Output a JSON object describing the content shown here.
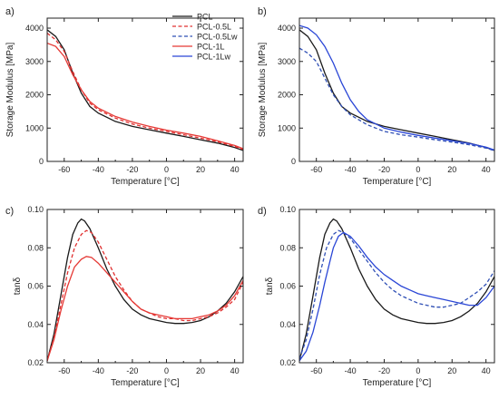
{
  "colors": {
    "PCL": "#1a1a1a",
    "PCL-0.5L": "#e03030",
    "PCL-0.5Lw": "#2f4fb5",
    "PCL-1L": "#e53935",
    "PCL-1Lw": "#2a46d6"
  },
  "chart_data": [
    {
      "panel": "a)",
      "type": "line",
      "xlabel": "Temperature [°C]",
      "ylabel": "Storage Modulus [MPa]",
      "xlim": [
        -70,
        45
      ],
      "ylim": [
        0,
        4300
      ],
      "xticks": [
        -60,
        -40,
        -20,
        0,
        20,
        40
      ],
      "yticks": [
        0,
        1000,
        2000,
        3000,
        4000
      ],
      "legend": {
        "placement": "top-right",
        "entries": [
          "PCL",
          "PCL-0.5L",
          "PCL-0.5Lw",
          "PCL-1L",
          "PCL-1Lw"
        ]
      },
      "series": [
        {
          "name": "PCL",
          "style": "solid",
          "color_key": "PCL",
          "x": [
            -70,
            -65,
            -60,
            -55,
            -50,
            -45,
            -40,
            -30,
            -20,
            -10,
            0,
            10,
            20,
            30,
            40,
            45
          ],
          "y": [
            3950,
            3750,
            3350,
            2650,
            2050,
            1650,
            1450,
            1200,
            1050,
            950,
            850,
            750,
            650,
            550,
            420,
            330
          ]
        },
        {
          "name": "PCL-0.5L",
          "style": "dashed",
          "color_key": "PCL-0.5L",
          "x": [
            -70,
            -65,
            -60,
            -55,
            -50,
            -45,
            -40,
            -30,
            -20,
            -10,
            0,
            10,
            20,
            30,
            40,
            45
          ],
          "y": [
            3850,
            3650,
            3300,
            2700,
            2150,
            1750,
            1550,
            1300,
            1120,
            1000,
            900,
            800,
            700,
            590,
            450,
            360
          ]
        },
        {
          "name": "PCL-1L",
          "style": "solid",
          "color_key": "PCL-1L",
          "x": [
            -70,
            -65,
            -60,
            -55,
            -50,
            -45,
            -40,
            -30,
            -20,
            -10,
            0,
            10,
            20,
            30,
            40,
            45
          ],
          "y": [
            3550,
            3450,
            3150,
            2600,
            2150,
            1800,
            1600,
            1350,
            1180,
            1050,
            940,
            850,
            750,
            620,
            480,
            380
          ]
        }
      ]
    },
    {
      "panel": "b)",
      "type": "line",
      "xlabel": "Temperature [°C]",
      "ylabel": "Storage Modulus [MPa]",
      "xlim": [
        -70,
        45
      ],
      "ylim": [
        0,
        4300
      ],
      "xticks": [
        -60,
        -40,
        -20,
        0,
        20,
        40
      ],
      "yticks": [
        0,
        1000,
        2000,
        3000,
        4000
      ],
      "series": [
        {
          "name": "PCL",
          "style": "solid",
          "color_key": "PCL",
          "x": [
            -70,
            -65,
            -60,
            -55,
            -50,
            -45,
            -40,
            -30,
            -20,
            -10,
            0,
            10,
            20,
            30,
            40,
            45
          ],
          "y": [
            3950,
            3750,
            3350,
            2650,
            2050,
            1650,
            1450,
            1200,
            1050,
            950,
            850,
            750,
            650,
            550,
            420,
            330
          ]
        },
        {
          "name": "PCL-0.5Lw",
          "style": "dashed",
          "color_key": "PCL-0.5Lw",
          "x": [
            -70,
            -65,
            -60,
            -55,
            -50,
            -45,
            -40,
            -30,
            -20,
            -10,
            0,
            10,
            20,
            30,
            40,
            45
          ],
          "y": [
            3400,
            3250,
            3000,
            2500,
            2000,
            1650,
            1400,
            1100,
            900,
            800,
            730,
            650,
            580,
            500,
            400,
            320
          ]
        },
        {
          "name": "PCL-1Lw",
          "style": "solid",
          "color_key": "PCL-1Lw",
          "x": [
            -70,
            -65,
            -60,
            -55,
            -50,
            -45,
            -40,
            -35,
            -30,
            -20,
            -10,
            0,
            10,
            20,
            30,
            40,
            45
          ],
          "y": [
            4080,
            4000,
            3800,
            3450,
            2950,
            2350,
            1850,
            1500,
            1250,
            1000,
            880,
            780,
            700,
            620,
            540,
            430,
            340
          ]
        }
      ]
    },
    {
      "panel": "c)",
      "type": "line",
      "xlabel": "Temperature [°C]",
      "ylabel": "tanδ",
      "xlim": [
        -70,
        45
      ],
      "ylim": [
        0.02,
        0.1
      ],
      "xticks": [
        -60,
        -40,
        -20,
        0,
        20,
        40
      ],
      "yticks": [
        0.02,
        0.04,
        0.06,
        0.08,
        0.1
      ],
      "series": [
        {
          "name": "PCL",
          "style": "solid",
          "color_key": "PCL",
          "x": [
            -70,
            -66,
            -62,
            -58,
            -55,
            -52,
            -50,
            -48,
            -45,
            -40,
            -35,
            -30,
            -25,
            -20,
            -15,
            -10,
            -5,
            0,
            5,
            10,
            15,
            20,
            25,
            30,
            35,
            40,
            45
          ],
          "y": [
            0.021,
            0.035,
            0.055,
            0.075,
            0.087,
            0.093,
            0.095,
            0.094,
            0.09,
            0.08,
            0.069,
            0.06,
            0.053,
            0.048,
            0.045,
            0.043,
            0.042,
            0.041,
            0.0405,
            0.0405,
            0.041,
            0.042,
            0.044,
            0.047,
            0.051,
            0.057,
            0.065
          ]
        },
        {
          "name": "PCL-0.5L",
          "style": "dashed",
          "color_key": "PCL-0.5L",
          "x": [
            -70,
            -66,
            -62,
            -58,
            -54,
            -50,
            -47,
            -44,
            -40,
            -35,
            -30,
            -25,
            -20,
            -15,
            -10,
            -5,
            0,
            5,
            10,
            15,
            20,
            25,
            30,
            35,
            40,
            45
          ],
          "y": [
            0.021,
            0.033,
            0.05,
            0.067,
            0.08,
            0.087,
            0.089,
            0.088,
            0.083,
            0.074,
            0.065,
            0.058,
            0.052,
            0.048,
            0.046,
            0.044,
            0.043,
            0.043,
            0.042,
            0.042,
            0.043,
            0.044,
            0.046,
            0.049,
            0.053,
            0.062
          ]
        },
        {
          "name": "PCL-1L",
          "style": "solid",
          "color_key": "PCL-1L",
          "x": [
            -70,
            -66,
            -62,
            -58,
            -54,
            -50,
            -47,
            -44,
            -40,
            -35,
            -30,
            -25,
            -20,
            -15,
            -10,
            -5,
            0,
            5,
            10,
            15,
            20,
            25,
            30,
            35,
            40,
            45
          ],
          "y": [
            0.021,
            0.032,
            0.047,
            0.06,
            0.07,
            0.074,
            0.0755,
            0.075,
            0.072,
            0.067,
            0.062,
            0.057,
            0.052,
            0.048,
            0.046,
            0.045,
            0.044,
            0.043,
            0.043,
            0.043,
            0.044,
            0.045,
            0.047,
            0.05,
            0.055,
            0.063
          ]
        }
      ]
    },
    {
      "panel": "d)",
      "type": "line",
      "xlabel": "Temperature [°C]",
      "ylabel": "tanδ",
      "xlim": [
        -70,
        45
      ],
      "ylim": [
        0.02,
        0.1
      ],
      "xticks": [
        -60,
        -40,
        -20,
        0,
        20,
        40
      ],
      "yticks": [
        0.02,
        0.04,
        0.06,
        0.08,
        0.1
      ],
      "series": [
        {
          "name": "PCL",
          "style": "solid",
          "color_key": "PCL",
          "x": [
            -70,
            -66,
            -62,
            -58,
            -55,
            -52,
            -50,
            -48,
            -45,
            -40,
            -35,
            -30,
            -25,
            -20,
            -15,
            -10,
            -5,
            0,
            5,
            10,
            15,
            20,
            25,
            30,
            35,
            40,
            45
          ],
          "y": [
            0.021,
            0.035,
            0.055,
            0.075,
            0.087,
            0.093,
            0.095,
            0.094,
            0.09,
            0.08,
            0.069,
            0.06,
            0.053,
            0.048,
            0.045,
            0.043,
            0.042,
            0.041,
            0.0405,
            0.0405,
            0.041,
            0.042,
            0.044,
            0.047,
            0.051,
            0.057,
            0.065
          ]
        },
        {
          "name": "PCL-0.5Lw",
          "style": "dashed",
          "color_key": "PCL-0.5Lw",
          "x": [
            -70,
            -66,
            -62,
            -58,
            -54,
            -50,
            -47,
            -44,
            -40,
            -35,
            -30,
            -25,
            -20,
            -15,
            -10,
            -5,
            0,
            5,
            10,
            15,
            20,
            25,
            30,
            35,
            40,
            45
          ],
          "y": [
            0.022,
            0.032,
            0.048,
            0.066,
            0.08,
            0.087,
            0.089,
            0.088,
            0.085,
            0.079,
            0.073,
            0.067,
            0.062,
            0.058,
            0.055,
            0.053,
            0.051,
            0.05,
            0.049,
            0.049,
            0.05,
            0.051,
            0.054,
            0.057,
            0.061,
            0.068
          ]
        },
        {
          "name": "PCL-1Lw",
          "style": "solid",
          "color_key": "PCL-1Lw",
          "x": [
            -70,
            -66,
            -62,
            -58,
            -55,
            -52,
            -50,
            -47,
            -44,
            -40,
            -35,
            -30,
            -25,
            -20,
            -15,
            -10,
            -5,
            0,
            5,
            10,
            15,
            20,
            25,
            30,
            35,
            40,
            45
          ],
          "y": [
            0.021,
            0.026,
            0.036,
            0.05,
            0.062,
            0.073,
            0.08,
            0.086,
            0.088,
            0.086,
            0.081,
            0.075,
            0.07,
            0.066,
            0.063,
            0.06,
            0.058,
            0.056,
            0.055,
            0.054,
            0.053,
            0.052,
            0.051,
            0.05,
            0.05,
            0.054,
            0.06
          ]
        }
      ]
    }
  ]
}
